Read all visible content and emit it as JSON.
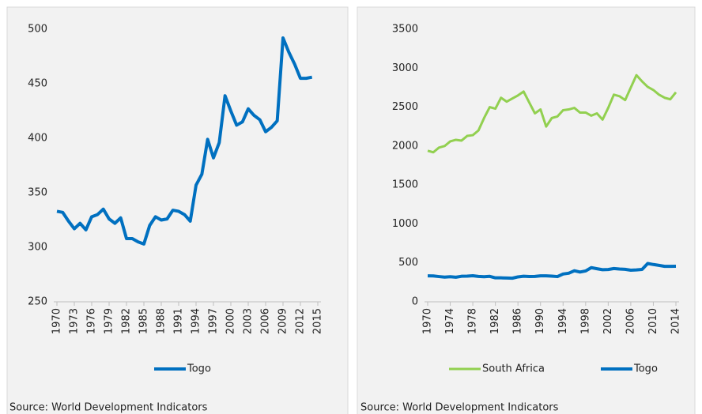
{
  "chart_data": [
    {
      "type": "line",
      "x": [
        1970,
        1971,
        1972,
        1973,
        1974,
        1975,
        1976,
        1977,
        1978,
        1979,
        1980,
        1981,
        1982,
        1983,
        1984,
        1985,
        1986,
        1987,
        1988,
        1989,
        1990,
        1991,
        1992,
        1993,
        1994,
        1995,
        1996,
        1997,
        1998,
        1999,
        2000,
        2001,
        2002,
        2003,
        2004,
        2005,
        2006,
        2007,
        2008,
        2009,
        2010,
        2011,
        2012,
        2013,
        2014
      ],
      "series": [
        {
          "name": "Togo",
          "color": "#0070c0",
          "values": [
            333,
            332,
            324,
            317,
            322,
            316,
            328,
            330,
            335,
            326,
            322,
            327,
            308,
            308,
            305,
            303,
            320,
            328,
            325,
            326,
            334,
            333,
            330,
            324,
            357,
            367,
            399,
            382,
            396,
            439,
            425,
            412,
            415,
            427,
            421,
            417,
            406,
            410,
            416,
            492,
            479,
            468,
            455,
            455,
            456
          ]
        }
      ],
      "xlim": [
        1970,
        2015
      ],
      "xticks": [
        1970,
        1973,
        1976,
        1979,
        1982,
        1985,
        1988,
        1991,
        1994,
        1997,
        2000,
        2003,
        2006,
        2009,
        2012,
        2015
      ],
      "ylim": [
        250,
        500
      ],
      "yticks": [
        250,
        300,
        350,
        400,
        450,
        500
      ],
      "source": "Source: World Development Indicators"
    },
    {
      "type": "line",
      "x": [
        1970,
        1971,
        1972,
        1973,
        1974,
        1975,
        1976,
        1977,
        1978,
        1979,
        1980,
        1981,
        1982,
        1983,
        1984,
        1985,
        1986,
        1987,
        1988,
        1989,
        1990,
        1991,
        1992,
        1993,
        1994,
        1995,
        1996,
        1997,
        1998,
        1999,
        2000,
        2001,
        2002,
        2003,
        2004,
        2005,
        2006,
        2007,
        2008,
        2009,
        2010,
        2011,
        2012,
        2013,
        2014
      ],
      "series": [
        {
          "name": "South Africa",
          "color": "#92d050",
          "values": [
            1940,
            1920,
            1980,
            2000,
            2060,
            2080,
            2070,
            2130,
            2140,
            2200,
            2360,
            2500,
            2480,
            2620,
            2570,
            2610,
            2650,
            2700,
            2560,
            2420,
            2470,
            2250,
            2360,
            2380,
            2460,
            2470,
            2490,
            2430,
            2430,
            2390,
            2420,
            2340,
            2490,
            2660,
            2640,
            2590,
            2750,
            2910,
            2830,
            2760,
            2720,
            2660,
            2620,
            2600,
            2690
          ]
        },
        {
          "name": "Togo",
          "color": "#0070c0",
          "values": [
            333,
            332,
            324,
            317,
            322,
            316,
            328,
            330,
            335,
            326,
            322,
            327,
            308,
            308,
            305,
            303,
            320,
            328,
            325,
            326,
            334,
            333,
            330,
            324,
            357,
            367,
            399,
            382,
            396,
            439,
            425,
            412,
            415,
            427,
            421,
            417,
            406,
            410,
            416,
            492,
            479,
            468,
            455,
            455,
            456
          ]
        }
      ],
      "xlim": [
        1970,
        2014
      ],
      "xticks": [
        1970,
        1974,
        1978,
        1982,
        1986,
        1990,
        1994,
        1998,
        2002,
        2006,
        2010,
        2014
      ],
      "ylim": [
        0,
        3500
      ],
      "yticks": [
        0,
        500,
        1000,
        1500,
        2000,
        2500,
        3000,
        3500
      ],
      "source": "Source: World Development Indicators"
    }
  ]
}
